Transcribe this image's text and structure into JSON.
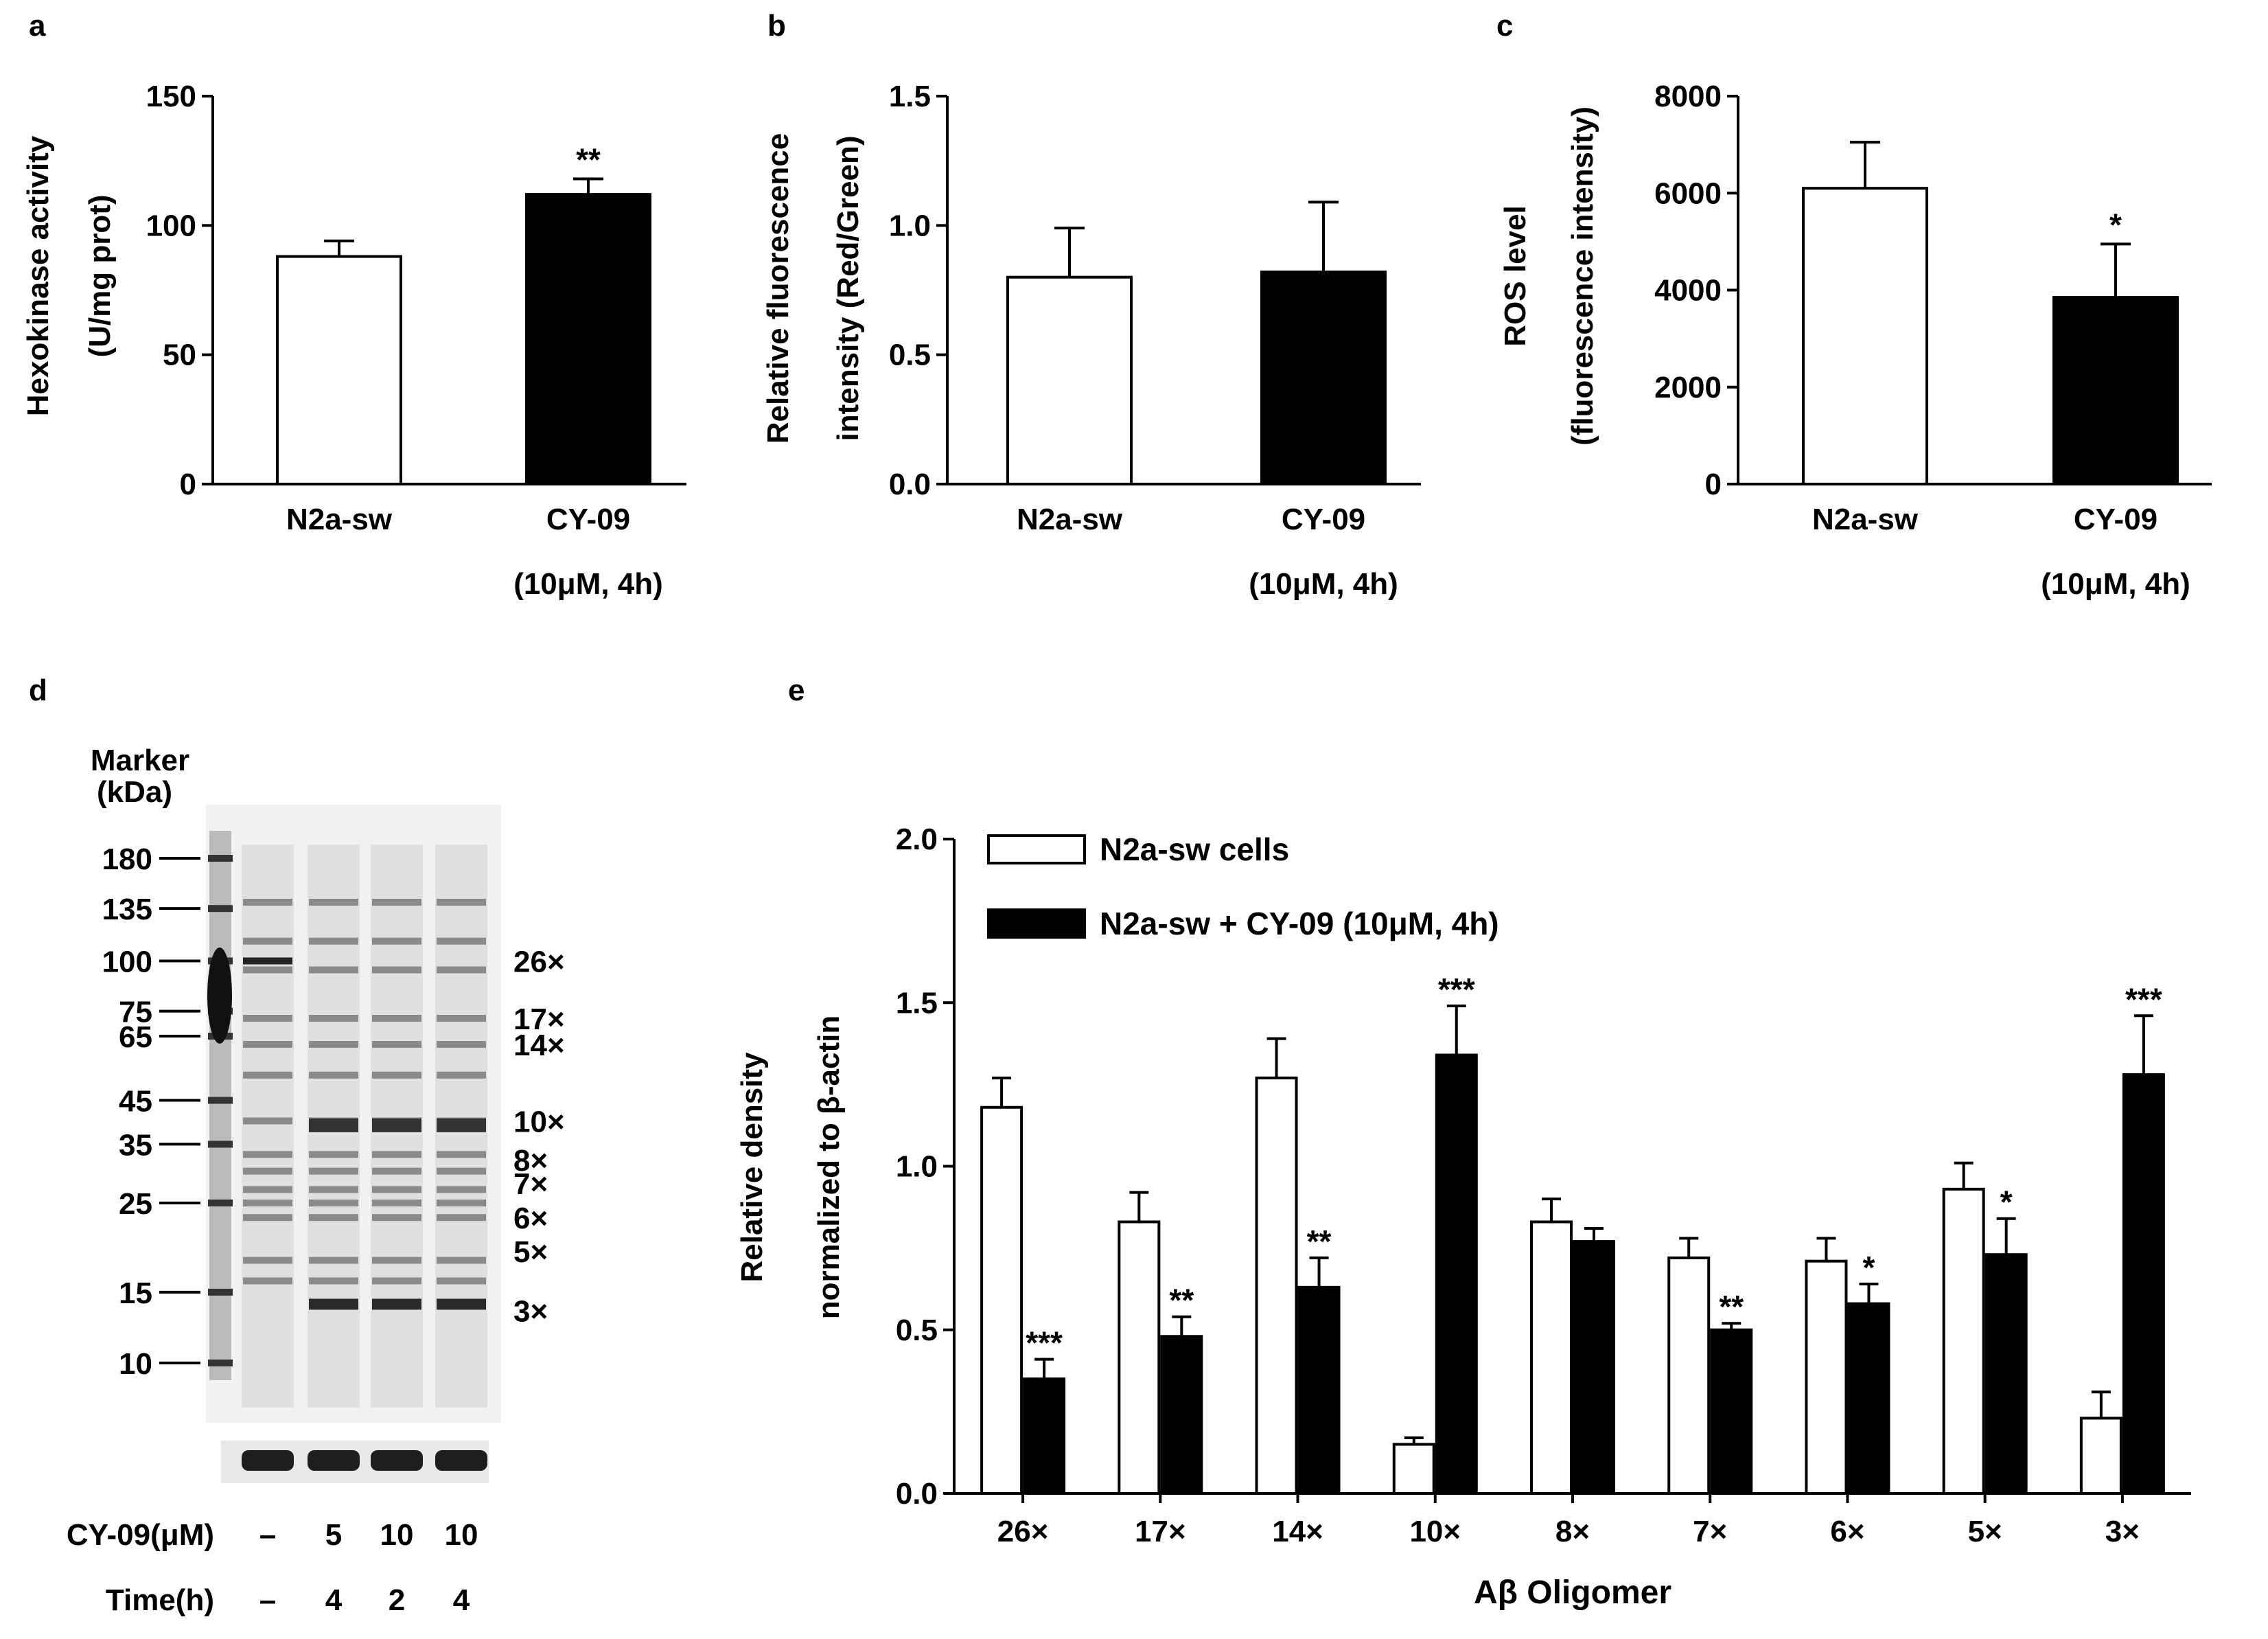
{
  "panel_labels": {
    "a": "a",
    "b": "b",
    "c": "c",
    "d": "d",
    "e": "e"
  },
  "chart_data": [
    {
      "panel": "a",
      "type": "bar",
      "ylabel_lines": [
        "Hexokinase activity",
        "(U/mg prot)"
      ],
      "categories": [
        "N2a-sw",
        "CY-09"
      ],
      "subtitle": "(10μM, 4h)",
      "values": [
        88,
        112
      ],
      "errors": [
        6,
        6
      ],
      "fills": [
        "#ffffff",
        "#000000"
      ],
      "ylim": [
        0,
        150
      ],
      "yticks": [
        0,
        50,
        100,
        150
      ],
      "ytick_labels": [
        "0",
        "50",
        "100",
        "150"
      ],
      "annotations": [
        "",
        "**"
      ]
    },
    {
      "panel": "b",
      "type": "bar",
      "ylabel_lines": [
        "Relative fluorescence",
        "intensity (Red/Green)"
      ],
      "categories": [
        "N2a-sw",
        "CY-09"
      ],
      "subtitle": "(10μM, 4h)",
      "values": [
        0.8,
        0.82
      ],
      "errors": [
        0.19,
        0.27
      ],
      "fills": [
        "#ffffff",
        "#000000"
      ],
      "ylim": [
        0,
        1.5
      ],
      "yticks": [
        0,
        0.5,
        1.0,
        1.5
      ],
      "ytick_labels": [
        "0.0",
        "0.5",
        "1.0",
        "1.5"
      ],
      "annotations": [
        "",
        ""
      ]
    },
    {
      "panel": "c",
      "type": "bar",
      "ylabel_lines": [
        "ROS level",
        "(fluorescence intensity)"
      ],
      "categories": [
        "N2a-sw",
        "CY-09"
      ],
      "subtitle": "(10μM, 4h)",
      "values": [
        6100,
        3850
      ],
      "errors": [
        950,
        1100
      ],
      "fills": [
        "#ffffff",
        "#000000"
      ],
      "ylim": [
        0,
        8000
      ],
      "yticks": [
        0,
        2000,
        4000,
        6000,
        8000
      ],
      "ytick_labels": [
        "0",
        "2000",
        "4000",
        "6000",
        "8000"
      ],
      "annotations": [
        "",
        "*"
      ]
    },
    {
      "panel": "e",
      "type": "bar",
      "xlabel": "Aβ Oligomer",
      "ylabel_lines": [
        "Relative density",
        "normalized to β-actin"
      ],
      "categories": [
        "26×",
        "17×",
        "14×",
        "10×",
        "8×",
        "7×",
        "6×",
        "5×",
        "3×"
      ],
      "ylim": [
        0,
        2.0
      ],
      "yticks": [
        0,
        0.5,
        1.0,
        1.5,
        2.0
      ],
      "ytick_labels": [
        "0.0",
        "0.5",
        "1.0",
        "1.5",
        "2.0"
      ],
      "legend_position": "top-left",
      "series": [
        {
          "name": "N2a-sw cells",
          "fill": "#ffffff",
          "values": [
            1.18,
            0.83,
            1.27,
            0.15,
            0.83,
            0.72,
            0.71,
            0.93,
            0.23
          ],
          "errors": [
            0.09,
            0.09,
            0.12,
            0.02,
            0.07,
            0.06,
            0.07,
            0.08,
            0.08
          ],
          "annotations": [
            "",
            "",
            "",
            "",
            "",
            "",
            "",
            "",
            ""
          ]
        },
        {
          "name": "N2a-sw + CY-09 (10μM, 4h)",
          "fill": "#000000",
          "values": [
            0.35,
            0.48,
            0.63,
            1.34,
            0.77,
            0.5,
            0.58,
            0.73,
            1.28
          ],
          "errors": [
            0.06,
            0.06,
            0.09,
            0.15,
            0.04,
            0.02,
            0.06,
            0.11,
            0.18
          ],
          "annotations": [
            "***",
            "**",
            "**",
            "***",
            "",
            "**",
            "*",
            "*",
            "***"
          ]
        }
      ]
    }
  ],
  "blot": {
    "marker_title": "Marker",
    "marker_unit": "(kDa)",
    "markers": [
      {
        "label": "180",
        "kda": 180
      },
      {
        "label": "135",
        "kda": 135
      },
      {
        "label": "100",
        "kda": 100
      },
      {
        "label": "75",
        "kda": 75
      },
      {
        "label": "65",
        "kda": 65
      },
      {
        "label": "45",
        "kda": 45
      },
      {
        "label": "35",
        "kda": 35
      },
      {
        "label": "25",
        "kda": 25
      },
      {
        "label": "15",
        "kda": 15
      },
      {
        "label": "10",
        "kda": 10
      }
    ],
    "oligomer_labels": [
      "26×",
      "17×",
      "14×",
      "10×",
      "8×",
      "7×",
      "6×",
      "5×",
      "3×"
    ],
    "row_labels": [
      "CY-09(μM)",
      "Time(h)"
    ],
    "conditions": [
      {
        "dose": "–",
        "time": "–"
      },
      {
        "dose": "5",
        "time": "4"
      },
      {
        "dose": "10",
        "time": "2"
      },
      {
        "dose": "10",
        "time": "4"
      }
    ]
  }
}
